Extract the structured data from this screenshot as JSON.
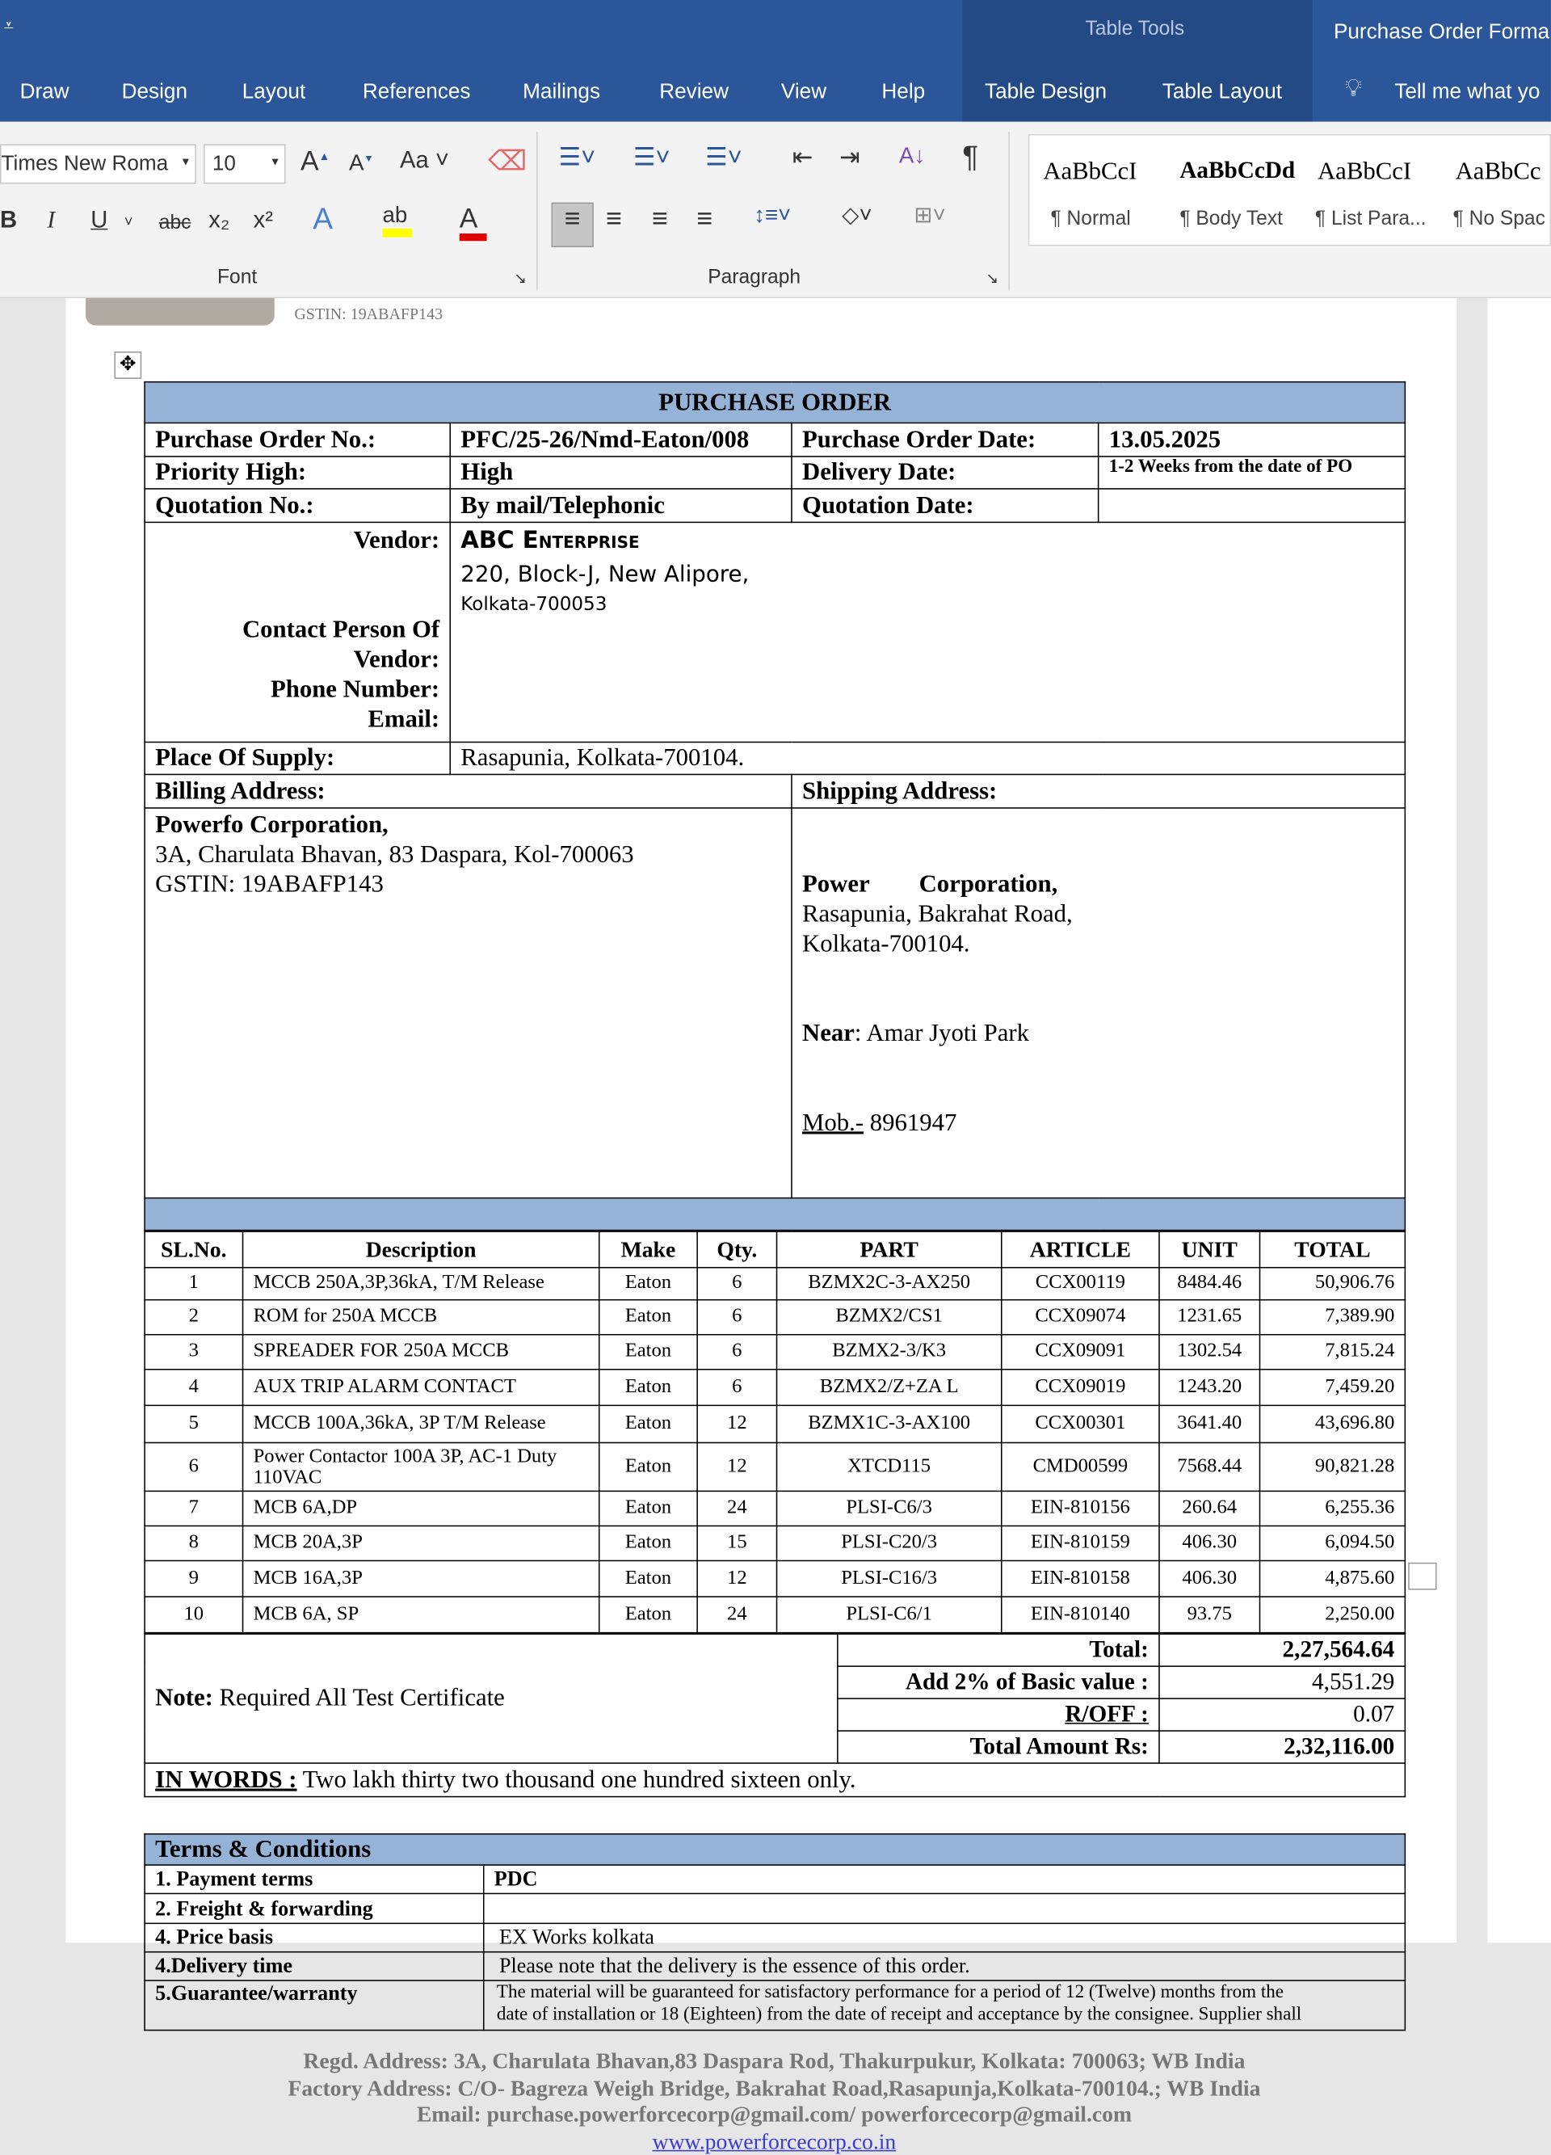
{
  "titlebar": {
    "qat_icon": "customize-qat-icon",
    "context_group": "Table Tools",
    "doc_title": "Purchase Order Forma"
  },
  "tabs": [
    "Draw",
    "Design",
    "Layout",
    "References",
    "Mailings",
    "Review",
    "View",
    "Help",
    "Table Design",
    "Table Layout"
  ],
  "tell_me": "Tell me what yo",
  "ribbon": {
    "font_name": "Times New Roma",
    "font_size": "10",
    "font_group": "Font",
    "paragraph_group": "Paragraph",
    "change_case": "Aa",
    "bold": "B",
    "italic": "I",
    "underline": "U",
    "strike": "abc",
    "subscript": "x₂",
    "superscript": "x²",
    "styles": [
      {
        "preview": "AaBbCcI",
        "label": "¶ Normal"
      },
      {
        "preview": "AaBbCcDd",
        "label": "¶ Body Text"
      },
      {
        "preview": "AaBbCcI",
        "label": "¶ List Para..."
      },
      {
        "preview": "AaBbCc",
        "label": "¶ No Spac"
      }
    ],
    "colors": {
      "highlight": "#ffff00",
      "font_color": "#e00000"
    }
  },
  "doc": {
    "gstin_header": "GSTIN: 19ABAFP143",
    "title": "PURCHASE ORDER",
    "po_no_label": "Purchase Order No.:",
    "po_no": "PFC/25-26/Nmd-Eaton/008",
    "po_date_label": "Purchase Order Date:",
    "po_date": "13.05.2025",
    "priority_label": "Priority High:",
    "priority": "High",
    "delivery_label": "Delivery Date:",
    "delivery": "1-2 Weeks from the date of PO",
    "quotation_label": "Quotation No.:",
    "quotation": "By mail/Telephonic",
    "quotation_date_label": "Quotation Date:",
    "quotation_date": "",
    "vendor_label": "Vendor:",
    "vendor_name": "ABC Enterprise",
    "vendor_addr1": "220, Block-J, New Alipore,",
    "vendor_addr2": "Kolkata-700053",
    "contact_label": "Contact Person Of Vendor:",
    "phone_label": "Phone Number:",
    "email_label": "Email:",
    "supply_label": "Place Of Supply:",
    "supply": "Rasapunia, Kolkata-700104.",
    "billing_label": "Billing Address:",
    "shipping_label": "Shipping Address:",
    "billing": [
      "Powerfo Corporation,",
      "3A, Charulata Bhavan, 83 Daspara, Kol-700063",
      "GSTIN: 19ABAFP143"
    ],
    "shipping": {
      "name": "Power        Corporation,",
      "line1": "Rasapunia, Bakrahat Road,",
      "line2": "Kolkata-700104.",
      "near_label": "Near",
      "near": ": Amar Jyoti Park",
      "mob_label": "Mob.-",
      "mob": " 8961947"
    },
    "item_headers": [
      "SL.No.",
      "Description",
      "Make",
      "Qty.",
      "PART",
      "ARTICLE",
      "UNIT",
      "TOTAL"
    ],
    "items": [
      [
        "1",
        "MCCB 250A,3P,36kA, T/M Release",
        "Eaton",
        "6",
        "BZMX2C-3-AX250",
        "CCX00119",
        "8484.46",
        "50,906.76"
      ],
      [
        "2",
        "ROM for 250A MCCB",
        "Eaton",
        "6",
        "BZMX2/CS1",
        "CCX09074",
        "1231.65",
        "7,389.90"
      ],
      [
        "3",
        "SPREADER FOR 250A MCCB",
        "Eaton",
        "6",
        "BZMX2-3/K3",
        "CCX09091",
        "1302.54",
        "7,815.24"
      ],
      [
        "4",
        "AUX TRIP ALARM CONTACT",
        "Eaton",
        "6",
        "BZMX2/Z+ZA L",
        "CCX09019",
        "1243.20",
        "7,459.20"
      ],
      [
        "5",
        "MCCB 100A,36kA, 3P T/M Release",
        "Eaton",
        "12",
        "BZMX1C-3-AX100",
        "CCX00301",
        "3641.40",
        "43,696.80"
      ],
      [
        "6",
        "Power Contactor 100A 3P, AC-1 Duty 110VAC",
        "Eaton",
        "12",
        "XTCD115",
        "CMD00599",
        "7568.44",
        "90,821.28"
      ],
      [
        "7",
        "MCB 6A,DP",
        "Eaton",
        "24",
        "PLSI-C6/3",
        "EIN-810156",
        "260.64",
        "6,255.36"
      ],
      [
        "8",
        "MCB 20A,3P",
        "Eaton",
        "15",
        "PLSI-C20/3",
        "EIN-810159",
        "406.30",
        "6,094.50"
      ],
      [
        "9",
        "MCB 16A,3P",
        "Eaton",
        "12",
        "PLSI-C16/3",
        "EIN-810158",
        "406.30",
        "4,875.60"
      ],
      [
        "10",
        "MCB 6A, SP",
        "Eaton",
        "24",
        "PLSI-C6/1",
        "EIN-810140",
        "93.75",
        "2,250.00"
      ]
    ],
    "note_label": "Note:",
    "note": " Required All Test Certificate",
    "total_label": "Total:",
    "total": "2,27,564.64",
    "add_label": "Add 2% of Basic value :",
    "add": "4,551.29",
    "roff_label": "R/OFF :",
    "roff": "0.07",
    "grand_label": "Total Amount Rs:",
    "grand": "2,32,116.00",
    "words_label": "IN WORDS :",
    "words": " Two lakh thirty two thousand one hundred sixteen only.",
    "terms_title": "Terms & Conditions",
    "terms": [
      [
        "1. Payment terms",
        "PDC"
      ],
      [
        "2. Freight & forwarding",
        ""
      ],
      [
        "4. Price basis",
        "EX Works kolkata"
      ],
      [
        "4.Delivery time",
        "Please note that the delivery is the essence of this order."
      ],
      [
        "5.Guarantee/warranty",
        "The material will be guaranteed for satisfactory performance for a period of 12 (Twelve) months from the",
        "date of installation or 18 (Eighteen) from the date of receipt and acceptance by the consignee. Supplier shall"
      ]
    ],
    "footer": [
      "Regd. Address: 3A, Charulata Bhavan,83 Daspara Rod, Thakurpukur, Kolkata: 700063; WB India",
      "Factory Address: C/O- Bagreza Weigh Bridge, Bakrahat Road,Rasapunja,Kolkata-700104.; WB India",
      "Email: purchase.powerforcecorp@gmail.com/ powerforcecorp@gmail.com",
      "www.powerforcecorp.co.in"
    ]
  }
}
